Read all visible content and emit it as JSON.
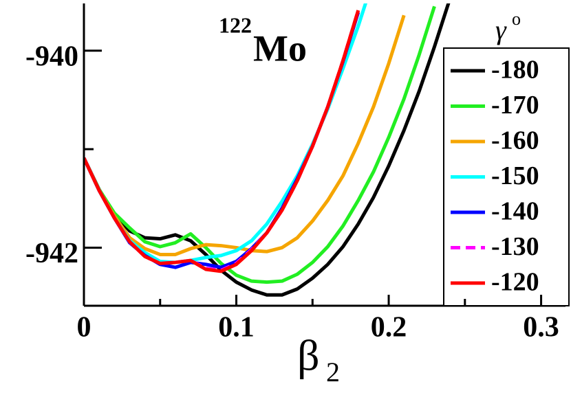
{
  "chart_data": {
    "type": "line",
    "title_superscript": "122",
    "title": "Mo",
    "x_label": "β",
    "x_label_subscript": "2",
    "legend_title": "γ",
    "legend_title_superscript": "o",
    "legend": "upper right",
    "x": [
      0,
      0.01,
      0.02,
      0.03,
      0.04,
      0.05,
      0.06,
      0.07,
      0.08,
      0.09,
      0.1,
      0.11,
      0.12,
      0.13,
      0.14,
      0.15,
      0.16,
      0.17,
      0.18,
      0.19,
      0.2,
      0.21,
      0.22,
      0.23,
      0.24
    ],
    "series": [
      {
        "name": "-180",
        "color": "#000000",
        "values": [
          -941.09,
          -941.41,
          -941.66,
          -941.83,
          -941.9,
          -941.91,
          -941.87,
          -941.93,
          -942.07,
          -942.23,
          -942.35,
          -942.43,
          -942.48,
          -942.48,
          -942.42,
          -942.31,
          -942.17,
          -941.99,
          -941.76,
          -941.49,
          -941.17,
          -940.81,
          -940.41,
          -939.96,
          -939.48
        ]
      },
      {
        "name": "-170",
        "color": "#22ee22",
        "values": [
          -941.09,
          -941.41,
          -941.65,
          -941.8,
          -941.94,
          -941.99,
          -941.95,
          -941.86,
          -942.0,
          -942.16,
          -942.28,
          -942.34,
          -942.35,
          -942.34,
          -942.27,
          -942.15,
          -941.99,
          -941.78,
          -941.52,
          -941.23,
          -940.88,
          -940.49,
          -940.04,
          -939.55,
          null
        ]
      },
      {
        "name": "-160",
        "color": "#f5a500",
        "values": [
          -941.09,
          -941.42,
          -941.68,
          -941.9,
          -942.01,
          -942.07,
          -942.07,
          -942.01,
          -941.97,
          -941.98,
          -942.0,
          -942.03,
          -942.04,
          -942.0,
          -941.9,
          -941.73,
          -941.52,
          -941.27,
          -940.94,
          -940.57,
          -940.13,
          -939.64,
          null,
          null,
          null
        ]
      },
      {
        "name": "-150",
        "color": "#00ffff",
        "values": [
          -941.09,
          -941.42,
          -941.7,
          -941.93,
          -942.05,
          -942.14,
          -942.15,
          -942.13,
          -942.1,
          -942.08,
          -942.03,
          -941.93,
          -941.76,
          -941.53,
          -941.27,
          -940.95,
          -940.59,
          -940.18,
          -939.75,
          -939.27,
          null,
          null,
          null,
          null,
          null
        ]
      },
      {
        "name": "-140",
        "color": "#0000ff",
        "values": [
          -941.09,
          -941.42,
          -941.7,
          -941.95,
          -942.08,
          -942.17,
          -942.2,
          -942.15,
          -942.17,
          -942.2,
          -942.14,
          -942.01,
          -941.85,
          -941.6,
          -941.3,
          -940.97,
          -940.57,
          -940.11,
          -939.61,
          null,
          null,
          null,
          null,
          null,
          null
        ]
      },
      {
        "name": "-130",
        "color": "#ff00ff",
        "dashed": true,
        "values": [
          -941.09,
          -941.42,
          -941.7,
          -941.94,
          -942.09,
          -942.16,
          -942.15,
          -942.13,
          -942.21,
          -942.23,
          -942.16,
          -942.02,
          -941.85,
          -941.62,
          -941.32,
          -940.97,
          -940.57,
          -940.1,
          -939.59,
          null,
          null,
          null,
          null,
          null,
          null
        ]
      },
      {
        "name": "-120",
        "color": "#ff0000",
        "values": [
          -941.09,
          -941.42,
          -941.7,
          -941.94,
          -942.09,
          -942.16,
          -942.15,
          -942.13,
          -942.22,
          -942.24,
          -942.17,
          -942.03,
          -941.85,
          -941.62,
          -941.32,
          -940.97,
          -940.57,
          -940.1,
          -939.59,
          null,
          null,
          null,
          null,
          null,
          null
        ]
      }
    ],
    "xlim": [
      0,
      0.316
    ],
    "ylim": [
      -942.59,
      -939.52
    ],
    "xticks": [
      0,
      0.1,
      0.2,
      0.3
    ],
    "xminorticks": [
      0.05,
      0.15,
      0.25
    ],
    "yticks": [
      -942,
      -940
    ],
    "yminorticks": [
      -941
    ]
  }
}
